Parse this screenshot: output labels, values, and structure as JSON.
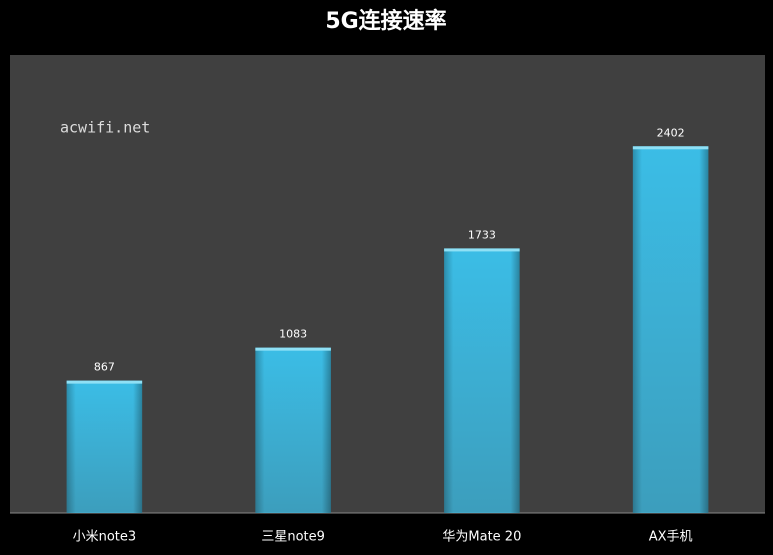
{
  "chart_data": {
    "type": "bar",
    "title": "5G连接速率",
    "annotation": "acwifi.net",
    "categories": [
      "小米note3",
      "三星note9",
      "华为Mate 20",
      "AX手机"
    ],
    "values": [
      867,
      1083,
      1733,
      2402
    ],
    "color": "#3bbde6",
    "ylim": [
      0,
      3000
    ]
  }
}
